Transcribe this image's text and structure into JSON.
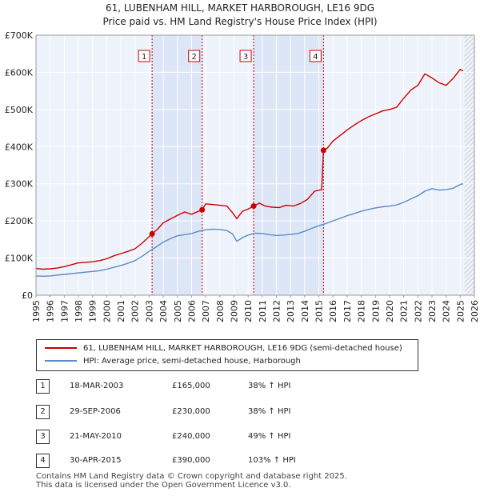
{
  "chart_data": {
    "type": "line",
    "title": "61, LUBENHAM HILL, MARKET HARBOROUGH, LE16 9DG",
    "subtitle": "Price paid vs. HM Land Registry's House Price Index (HPI)",
    "xlabel": "",
    "ylabel": "",
    "xlim": [
      1995,
      2026
    ],
    "ylim": [
      0,
      700000
    ],
    "y_ticks": [
      0,
      100000,
      200000,
      300000,
      400000,
      500000,
      600000,
      700000
    ],
    "y_tick_labels": [
      "£0",
      "£100K",
      "£200K",
      "£300K",
      "£400K",
      "£500K",
      "£600K",
      "£700K"
    ],
    "x_ticks": [
      1995,
      1996,
      1997,
      1998,
      1999,
      2000,
      2001,
      2002,
      2003,
      2004,
      2005,
      2006,
      2007,
      2008,
      2009,
      2010,
      2011,
      2012,
      2013,
      2014,
      2015,
      2016,
      2017,
      2018,
      2019,
      2020,
      2021,
      2022,
      2023,
      2024,
      2025,
      2026
    ],
    "x_tick_labels": [
      "1995",
      "1996",
      "1997",
      "1998",
      "1999",
      "2000",
      "2001",
      "2002",
      "2003",
      "2004",
      "2005",
      "2006",
      "2007",
      "2008",
      "2009",
      "2010",
      "2011",
      "2012",
      "2013",
      "2014",
      "2015",
      "2016",
      "2017",
      "2018",
      "2019",
      "2020",
      "2021",
      "2022",
      "2023",
      "2024",
      "2025",
      "2026"
    ],
    "grid": true,
    "shaded_periods": [
      [
        2003.21,
        2006.75
      ],
      [
        2010.39,
        2015.33
      ]
    ],
    "future_hatch_start": 2025.3,
    "series": [
      {
        "name": "61, LUBENHAM HILL, MARKET HARBOROUGH, LE16 9DG (semi-detached house)",
        "color": "#cc0000",
        "x": [
          1995,
          1995.5,
          1996,
          1996.5,
          1997,
          1997.5,
          1998,
          1998.5,
          1999,
          1999.5,
          2000,
          2000.5,
          2001,
          2001.5,
          2002,
          2002.5,
          2003.21,
          2003.6,
          2004,
          2004.5,
          2005,
          2005.5,
          2006,
          2006.75,
          2007,
          2007.5,
          2008,
          2008.5,
          2008.9,
          2009.2,
          2009.6,
          2010,
          2010.39,
          2010.8,
          2011.2,
          2011.7,
          2012.2,
          2012.7,
          2013.2,
          2013.7,
          2014.2,
          2014.7,
          2015.2,
          2015.33,
          2015.6,
          2016,
          2016.5,
          2017,
          2017.5,
          2018,
          2018.5,
          2019,
          2019.5,
          2020,
          2020.5,
          2021,
          2021.5,
          2022,
          2022.5,
          2023,
          2023.5,
          2024,
          2024.5,
          2025,
          2025.2
        ],
        "values": [
          72000,
          70000,
          71000,
          73000,
          77000,
          82000,
          87000,
          88000,
          90000,
          93000,
          98000,
          106000,
          112000,
          118000,
          125000,
          140000,
          165000,
          178000,
          195000,
          205000,
          215000,
          224000,
          218000,
          230000,
          246000,
          244000,
          242000,
          240000,
          222000,
          206000,
          226000,
          232000,
          240000,
          248000,
          240000,
          237000,
          236000,
          242000,
          240000,
          247000,
          258000,
          280000,
          284000,
          390000,
          396000,
          415000,
          430000,
          445000,
          458000,
          470000,
          480000,
          488000,
          496000,
          500000,
          506000,
          530000,
          552000,
          565000,
          596000,
          585000,
          572000,
          565000,
          584000,
          608000,
          604000
        ]
      },
      {
        "name": "HPI: Average price, semi-detached house, Harborough",
        "color": "#5b8ac6",
        "x": [
          1995,
          1995.5,
          1996,
          1996.5,
          1997,
          1997.5,
          1998,
          1998.5,
          1999,
          1999.5,
          2000,
          2000.5,
          2001,
          2001.5,
          2002,
          2002.5,
          2003,
          2003.5,
          2004,
          2004.5,
          2005,
          2005.5,
          2006,
          2006.5,
          2007,
          2007.5,
          2008,
          2008.5,
          2008.9,
          2009.2,
          2009.6,
          2010,
          2010.5,
          2011,
          2011.5,
          2012,
          2012.5,
          2013,
          2013.5,
          2014,
          2014.5,
          2015,
          2015.5,
          2016,
          2016.5,
          2017,
          2017.5,
          2018,
          2018.5,
          2019,
          2019.5,
          2020,
          2020.5,
          2021,
          2021.5,
          2022,
          2022.5,
          2023,
          2023.5,
          2024,
          2024.5,
          2025,
          2025.2
        ],
        "values": [
          52000,
          51000,
          52000,
          54000,
          56000,
          58000,
          60000,
          62000,
          64000,
          66000,
          70000,
          75000,
          80000,
          86000,
          93000,
          105000,
          118000,
          130000,
          143000,
          152000,
          160000,
          163000,
          166000,
          172000,
          176000,
          178000,
          177000,
          174000,
          165000,
          145000,
          155000,
          162000,
          167000,
          166000,
          163000,
          161000,
          162000,
          164000,
          166000,
          172000,
          180000,
          187000,
          193000,
          200000,
          207000,
          214000,
          220000,
          226000,
          231000,
          235000,
          238000,
          240000,
          243000,
          250000,
          259000,
          268000,
          280000,
          287000,
          283000,
          284000,
          288000,
          298000,
          300000
        ]
      }
    ],
    "sale_markers": [
      {
        "label": "1",
        "x": 2003.21,
        "value": 165000
      },
      {
        "label": "2",
        "x": 2006.75,
        "value": 230000
      },
      {
        "label": "3",
        "x": 2010.39,
        "value": 240000
      },
      {
        "label": "4",
        "x": 2015.33,
        "value": 390000
      }
    ]
  },
  "legend": {
    "property_label": "61, LUBENHAM HILL, MARKET HARBOROUGH, LE16 9DG (semi-detached house)",
    "hpi_label": "HPI: Average price, semi-detached house, Harborough"
  },
  "sales": [
    {
      "num": "1",
      "date": "18-MAR-2003",
      "price": "£165,000",
      "hpi": "38% ↑ HPI"
    },
    {
      "num": "2",
      "date": "29-SEP-2006",
      "price": "£230,000",
      "hpi": "38% ↑ HPI"
    },
    {
      "num": "3",
      "date": "21-MAY-2010",
      "price": "£240,000",
      "hpi": "49% ↑ HPI"
    },
    {
      "num": "4",
      "date": "30-APR-2015",
      "price": "£390,000",
      "hpi": "103% ↑ HPI"
    }
  ],
  "footer": {
    "line1": "Contains HM Land Registry data © Crown copyright and database right 2025.",
    "line2": "This data is licensed under the Open Government Licence v3.0."
  },
  "colors": {
    "property": "#cc0000",
    "hpi": "#5b8ac6",
    "shade": "#dde6f7",
    "plot_bg": "#eef2fa",
    "grid": "#ffffff"
  }
}
